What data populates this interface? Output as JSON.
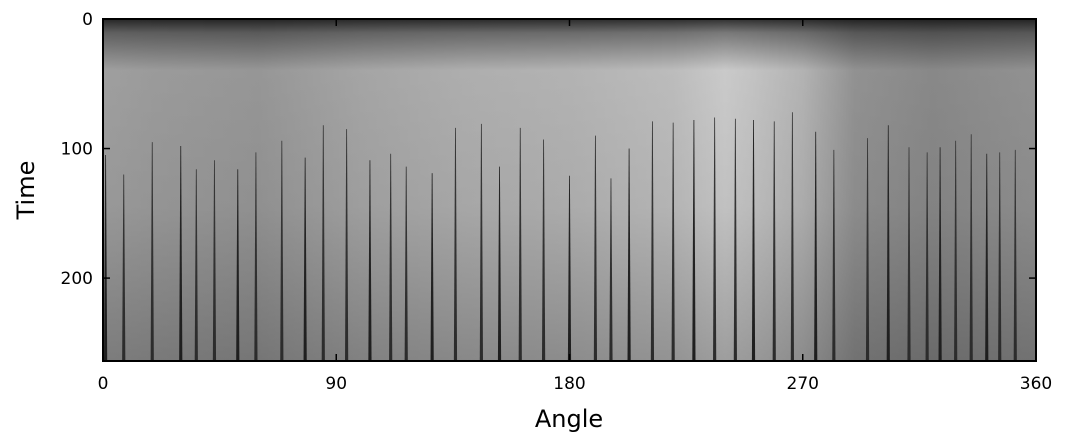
{
  "chart_data": {
    "type": "heatmap",
    "title": "",
    "xlabel": "Angle",
    "ylabel": "Time",
    "xlim": [
      0,
      360
    ],
    "ylim": [
      264,
      0
    ],
    "x_ticks": [
      0,
      90,
      180,
      270,
      360
    ],
    "x_tick_labels": [
      "0",
      "90",
      "180",
      "270",
      "360"
    ],
    "y_ticks": [
      0,
      100,
      200
    ],
    "y_tick_labels": [
      "0",
      "100",
      "200"
    ],
    "colormap": "grayscale",
    "grid": false,
    "legend": "none",
    "brightness_profile": {
      "x": [
        0,
        20,
        60,
        100,
        140,
        180,
        220,
        240,
        250,
        270,
        290,
        320,
        360
      ],
      "level": [
        0.68,
        0.66,
        0.64,
        0.7,
        0.74,
        0.76,
        0.8,
        0.86,
        0.83,
        0.76,
        0.62,
        0.58,
        0.62
      ]
    },
    "vertical_streaks": [
      {
        "x": 1,
        "start": 105
      },
      {
        "x": 8,
        "start": 120
      },
      {
        "x": 19,
        "start": 95
      },
      {
        "x": 30,
        "start": 98
      },
      {
        "x": 36,
        "start": 116
      },
      {
        "x": 43,
        "start": 109
      },
      {
        "x": 52,
        "start": 116
      },
      {
        "x": 59,
        "start": 103
      },
      {
        "x": 69,
        "start": 94
      },
      {
        "x": 78,
        "start": 107
      },
      {
        "x": 85,
        "start": 82
      },
      {
        "x": 94,
        "start": 85
      },
      {
        "x": 103,
        "start": 109
      },
      {
        "x": 111,
        "start": 104
      },
      {
        "x": 117,
        "start": 114
      },
      {
        "x": 127,
        "start": 119
      },
      {
        "x": 136,
        "start": 84
      },
      {
        "x": 146,
        "start": 81
      },
      {
        "x": 153,
        "start": 114
      },
      {
        "x": 161,
        "start": 84
      },
      {
        "x": 170,
        "start": 93
      },
      {
        "x": 180,
        "start": 121
      },
      {
        "x": 190,
        "start": 90
      },
      {
        "x": 196,
        "start": 123
      },
      {
        "x": 203,
        "start": 100
      },
      {
        "x": 212,
        "start": 79
      },
      {
        "x": 220,
        "start": 80
      },
      {
        "x": 228,
        "start": 78
      },
      {
        "x": 236,
        "start": 76
      },
      {
        "x": 244,
        "start": 77
      },
      {
        "x": 251,
        "start": 78
      },
      {
        "x": 259,
        "start": 79
      },
      {
        "x": 266,
        "start": 72
      },
      {
        "x": 275,
        "start": 87
      },
      {
        "x": 282,
        "start": 101
      },
      {
        "x": 295,
        "start": 92
      },
      {
        "x": 303,
        "start": 82
      },
      {
        "x": 311,
        "start": 99
      },
      {
        "x": 318,
        "start": 103
      },
      {
        "x": 323,
        "start": 99
      },
      {
        "x": 329,
        "start": 94
      },
      {
        "x": 335,
        "start": 89
      },
      {
        "x": 341,
        "start": 104
      },
      {
        "x": 346,
        "start": 103
      },
      {
        "x": 352,
        "start": 101
      }
    ]
  }
}
